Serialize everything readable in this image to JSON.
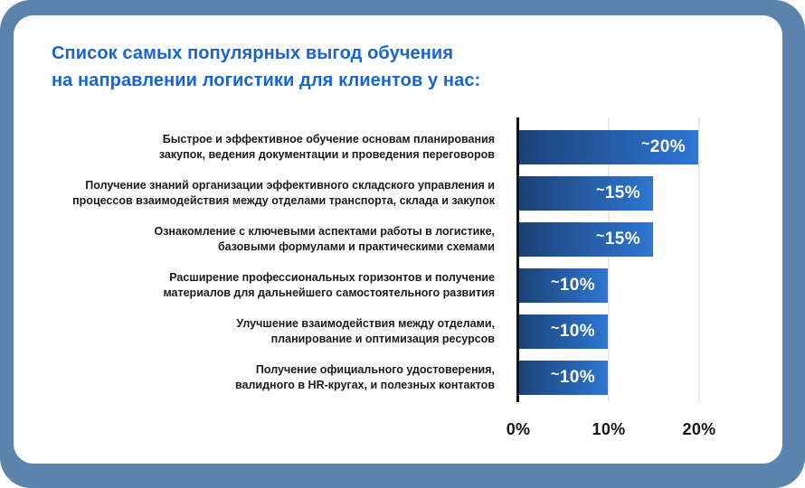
{
  "colors": {
    "background": "#5b83ab",
    "card": "#ffffff",
    "title_color": "#1565d8",
    "bar_gradient_start": "#1c4277",
    "bar_gradient_end": "#2e76d2",
    "axis_line": "#111111",
    "grid_line": "#e9e9e9",
    "label_text": "#1b1b1b",
    "value_text": "#ffffff"
  },
  "title": {
    "line1": "Список самых популярных выгод обучения",
    "line2": "на направлении логистики для клиентов у нас:"
  },
  "chart_data": {
    "type": "bar",
    "orientation": "horizontal",
    "title": "Список самых популярных выгод обучения на направлении логистики для клиентов у нас:",
    "categories": [
      "Быстрое и эффективное обучение основам планирования закупок, ведения документации и проведения переговоров",
      "Получение знаний организации эффективного складского управления и процессов взаимодействия между отделами транспорта, склада и закупок",
      "Ознакомление с ключевыми аспектами работы в логистике, базовыми формулами и практическими схемами",
      "Расширение профессиональных горизонтов и получение материалов для дальнейшего самостоятельного развития",
      "Улучшение взаимодействия между отделами, планирование и оптимизация ресурсов",
      "Получение официального удостоверения, валидного в HR-кругах, и полезных контактов"
    ],
    "values": [
      20,
      15,
      15,
      10,
      10,
      10
    ],
    "value_labels": [
      "~20%",
      "~15%",
      "~15%",
      "~10%",
      "~10%",
      "~10%"
    ],
    "rows": [
      {
        "label_lines": [
          "Быстрое и эффективное обучение основам планирования",
          "закупок, ведения документации и проведения переговоров"
        ],
        "value": 20,
        "value_label": "~20%"
      },
      {
        "label_lines": [
          "Получение знаний организации эффективного складского управления и",
          "процессов взаимодействия между отделами транспорта, склада и закупок"
        ],
        "value": 15,
        "value_label": "~15%"
      },
      {
        "label_lines": [
          "Ознакомление с ключевыми аспектами работы в логистике,",
          "базовыми формулами и практическими схемами"
        ],
        "value": 15,
        "value_label": "~15%"
      },
      {
        "label_lines": [
          "Расширение профессиональных горизонтов и получение",
          "материалов для дальнейшего самостоятельного развития"
        ],
        "value": 10,
        "value_label": "~10%"
      },
      {
        "label_lines": [
          "Улучшение взаимодействия между отделами,",
          "планирование и оптимизация ресурсов"
        ],
        "value": 10,
        "value_label": "~10%"
      },
      {
        "label_lines": [
          "Получение официального удостоверения,",
          "валидного в HR-кругах, и полезных контактов"
        ],
        "value": 10,
        "value_label": "~10%"
      }
    ],
    "x_ticks": [
      {
        "label": "0%",
        "value": 0
      },
      {
        "label": "10%",
        "value": 10
      },
      {
        "label": "20%",
        "value": 20
      }
    ],
    "xlim": [
      0,
      20
    ],
    "grid": "vertical gridlines at 10% and 20%",
    "legend": false
  }
}
